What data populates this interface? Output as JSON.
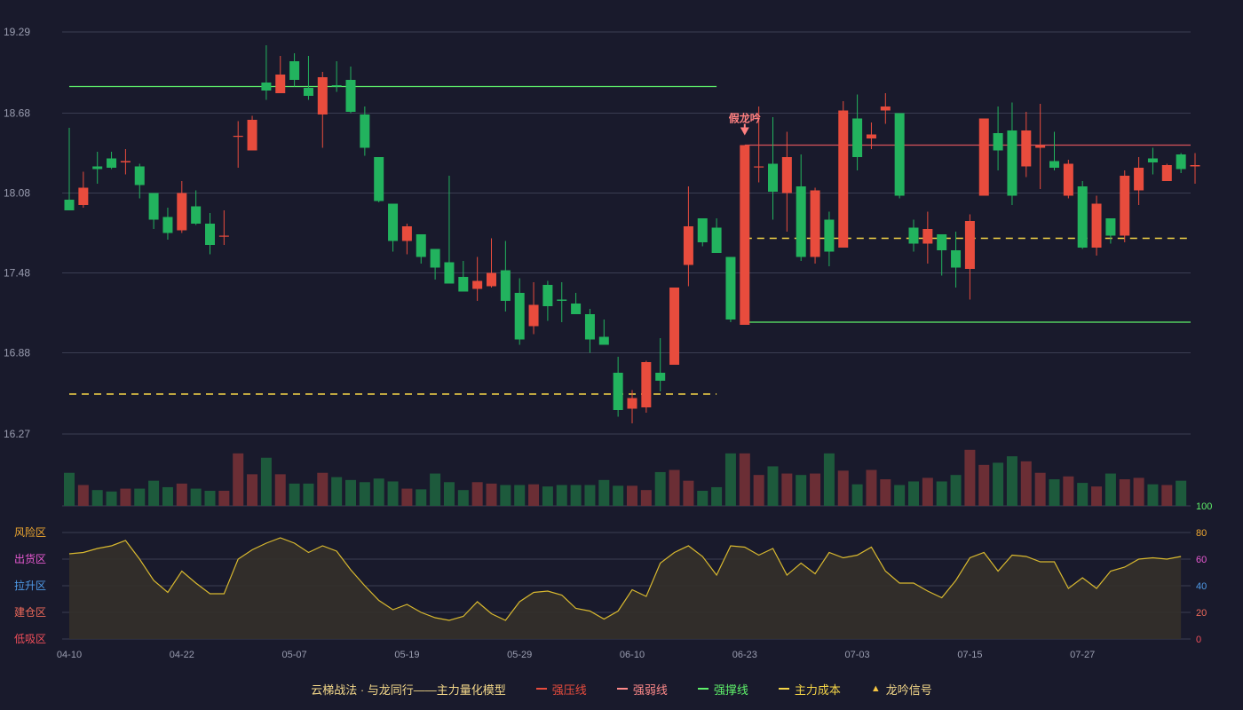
{
  "legend": {
    "title": "云梯战法 · 与龙同行——主力量化模型",
    "items": [
      {
        "label": "强压线",
        "color": "#e84c3d",
        "style": "solid"
      },
      {
        "label": "强弱线",
        "color": "#ff8a8a",
        "style": "dashed"
      },
      {
        "label": "强撑线",
        "color": "#5ef06a",
        "style": "solid"
      },
      {
        "label": "主力成本",
        "color": "#f5d547",
        "style": "dashed"
      },
      {
        "label": "龙吟信号",
        "color": "#f5c542",
        "style": "triangle"
      }
    ]
  },
  "colors": {
    "up": "#e84c3d",
    "down": "#22b35e",
    "vol_up": "#6b2e35",
    "vol_down": "#1d5a3c",
    "grid": "#3a3d52",
    "text": "#9a9db0",
    "osc_line": "#d9b92f",
    "osc_fill": "#34302a"
  },
  "chart_data": {
    "type": "candlestick",
    "price_axis": {
      "ticks": [
        "19.29",
        "18.68",
        "18.08",
        "17.48",
        "16.88",
        "16.27"
      ],
      "ylim": [
        16.27,
        19.29
      ]
    },
    "x_tick_labels": [
      {
        "label": "04-10",
        "index": 0
      },
      {
        "label": "04-22",
        "index": 8
      },
      {
        "label": "05-07",
        "index": 16
      },
      {
        "label": "05-19",
        "index": 24
      },
      {
        "label": "05-29",
        "index": 32
      },
      {
        "label": "06-10",
        "index": 40
      },
      {
        "label": "06-23",
        "index": 48
      },
      {
        "label": "07-03",
        "index": 56
      },
      {
        "label": "07-15",
        "index": 64
      },
      {
        "label": "07-27",
        "index": 72
      }
    ],
    "candles": [
      [
        18.03,
        17.95,
        18.57,
        17.95
      ],
      [
        17.99,
        18.12,
        18.24,
        17.97
      ],
      [
        18.28,
        18.26,
        18.39,
        18.15
      ],
      [
        18.34,
        18.27,
        18.39,
        18.26
      ],
      [
        18.31,
        18.32,
        18.41,
        18.22
      ],
      [
        18.28,
        18.14,
        18.3,
        18.04
      ],
      [
        18.08,
        17.88,
        18.08,
        17.81
      ],
      [
        17.9,
        17.78,
        17.97,
        17.73
      ],
      [
        17.8,
        18.08,
        18.17,
        17.78
      ],
      [
        17.98,
        17.85,
        18.1,
        17.84
      ],
      [
        17.85,
        17.69,
        17.93,
        17.62
      ],
      [
        17.76,
        17.76,
        17.95,
        17.69
      ],
      [
        18.51,
        18.51,
        18.62,
        18.27
      ],
      [
        18.4,
        18.63,
        18.66,
        18.4
      ],
      [
        18.91,
        18.85,
        19.19,
        18.78
      ],
      [
        18.83,
        18.97,
        19.11,
        18.83
      ],
      [
        19.07,
        18.93,
        19.13,
        18.88
      ],
      [
        18.87,
        18.81,
        19.11,
        18.78
      ],
      [
        18.67,
        18.95,
        18.99,
        18.42
      ],
      [
        18.89,
        18.88,
        19.07,
        18.84
      ],
      [
        18.93,
        18.69,
        19.03,
        18.68
      ],
      [
        18.67,
        18.42,
        18.73,
        18.36
      ],
      [
        18.35,
        18.02,
        18.35,
        18.01
      ],
      [
        18.0,
        17.72,
        18.0,
        17.64
      ],
      [
        17.72,
        17.83,
        17.85,
        17.62
      ],
      [
        17.77,
        17.6,
        17.77,
        17.55
      ],
      [
        17.66,
        17.52,
        17.66,
        17.43
      ],
      [
        17.56,
        17.4,
        18.21,
        17.4
      ],
      [
        17.45,
        17.34,
        17.57,
        17.34
      ],
      [
        17.36,
        17.42,
        17.6,
        17.27
      ],
      [
        17.38,
        17.48,
        17.74,
        17.37
      ],
      [
        17.5,
        17.27,
        17.72,
        17.19
      ],
      [
        17.33,
        16.98,
        17.44,
        16.94
      ],
      [
        17.08,
        17.24,
        17.41,
        17.02
      ],
      [
        17.39,
        17.23,
        17.42,
        17.12
      ],
      [
        17.28,
        17.27,
        17.41,
        17.11
      ],
      [
        17.25,
        17.17,
        17.33,
        17.17
      ],
      [
        17.17,
        16.98,
        17.21,
        16.88
      ],
      [
        17.0,
        16.94,
        17.13,
        16.94
      ],
      [
        16.73,
        16.45,
        16.85,
        16.4
      ],
      [
        16.46,
        16.54,
        16.6,
        16.35
      ],
      [
        16.47,
        16.81,
        16.82,
        16.43
      ],
      [
        16.73,
        16.67,
        16.99,
        16.59
      ],
      [
        16.79,
        17.37,
        17.37,
        16.79
      ],
      [
        17.54,
        17.83,
        18.13,
        17.38
      ],
      [
        17.89,
        17.71,
        17.89,
        17.68
      ],
      [
        17.82,
        17.63,
        17.89,
        17.63
      ],
      [
        17.6,
        17.13,
        17.6,
        17.11
      ],
      [
        17.09,
        18.44,
        18.44,
        17.09
      ],
      [
        18.28,
        18.28,
        18.73,
        18.16
      ],
      [
        18.3,
        18.09,
        18.65,
        17.88
      ],
      [
        18.08,
        18.35,
        18.54,
        17.79
      ],
      [
        18.13,
        17.6,
        18.37,
        17.57
      ],
      [
        17.6,
        18.1,
        18.12,
        17.55
      ],
      [
        17.88,
        17.64,
        17.94,
        17.53
      ],
      [
        17.67,
        18.7,
        18.77,
        17.73
      ],
      [
        18.64,
        18.35,
        18.82,
        18.25
      ],
      [
        18.49,
        18.52,
        18.61,
        18.41
      ],
      [
        18.7,
        18.73,
        18.83,
        18.6
      ],
      [
        18.68,
        18.06,
        18.68,
        18.04
      ],
      [
        17.82,
        17.7,
        17.88,
        17.64
      ],
      [
        17.7,
        17.81,
        17.94,
        17.55
      ],
      [
        17.77,
        17.65,
        17.77,
        17.46
      ],
      [
        17.65,
        17.52,
        17.79,
        17.37
      ],
      [
        17.51,
        17.87,
        17.92,
        17.28
      ],
      [
        18.06,
        18.64,
        18.64,
        18.06
      ],
      [
        18.53,
        18.4,
        18.73,
        18.25
      ],
      [
        18.55,
        18.06,
        18.76,
        17.99
      ],
      [
        18.28,
        18.55,
        18.69,
        18.2
      ],
      [
        18.42,
        18.44,
        18.75,
        18.11
      ],
      [
        18.32,
        18.27,
        18.54,
        18.25
      ],
      [
        18.06,
        18.3,
        18.33,
        18.04
      ],
      [
        18.13,
        17.67,
        18.17,
        17.66
      ],
      [
        17.67,
        18.0,
        18.06,
        17.61
      ],
      [
        17.89,
        17.76,
        17.89,
        17.7
      ],
      [
        17.76,
        18.21,
        18.25,
        17.71
      ],
      [
        18.1,
        18.27,
        18.35,
        17.99
      ],
      [
        18.34,
        18.31,
        18.42,
        18.22
      ],
      [
        18.17,
        18.29,
        18.3,
        18.17
      ],
      [
        18.37,
        18.26,
        18.38,
        18.23
      ],
      [
        18.28,
        18.29,
        18.38,
        18.15
      ]
    ],
    "volume": [
      46,
      29,
      22,
      20,
      24,
      24,
      35,
      26,
      31,
      24,
      21,
      21,
      73,
      44,
      67,
      44,
      31,
      31,
      46,
      40,
      36,
      33,
      38,
      34,
      24,
      23,
      45,
      33,
      22,
      33,
      31,
      29,
      29,
      30,
      27,
      29,
      29,
      29,
      36,
      28,
      28,
      22,
      47,
      50,
      35,
      21,
      26,
      73,
      73,
      43,
      55,
      45,
      43,
      45,
      73,
      49,
      30,
      50,
      37,
      29,
      34,
      39,
      34,
      43,
      78,
      57,
      60,
      69,
      62,
      46,
      37,
      41,
      32,
      27,
      45,
      37,
      39,
      30,
      29,
      35
    ],
    "volume_axis": {
      "ticks": [
        "100",
        "80",
        "60",
        "40",
        "20",
        "0"
      ],
      "ylim": [
        0,
        100
      ]
    },
    "oscillator": [
      64,
      65,
      68,
      70,
      74,
      60,
      44,
      35,
      51,
      42,
      34,
      34,
      60,
      67,
      72,
      76,
      72,
      65,
      70,
      66,
      52,
      40,
      29,
      22,
      26,
      20,
      16,
      14,
      17,
      28,
      19,
      14,
      28,
      35,
      36,
      33,
      23,
      21,
      15,
      21,
      37,
      32,
      57,
      65,
      70,
      62,
      48,
      70,
      69,
      63,
      68,
      48,
      57,
      49,
      65,
      61,
      63,
      69,
      51,
      42,
      42,
      36,
      31,
      44,
      61,
      65,
      51,
      63,
      62,
      58,
      58,
      38,
      46,
      38,
      51,
      54,
      60,
      61,
      60,
      62
    ],
    "oscillator_zones": [
      {
        "label": "风险区",
        "color": "#f0a830"
      },
      {
        "label": "出货区",
        "color": "#e85ad2"
      },
      {
        "label": "拉升区",
        "color": "#4f9be8"
      },
      {
        "label": "建仓区",
        "color": "#ef6a5a"
      },
      {
        "label": "低吸区",
        "color": "#f04e5a"
      }
    ],
    "lines": [
      {
        "name": "强撑线",
        "kind": "support",
        "y": 18.88,
        "from_index": 0,
        "to_index": 46
      },
      {
        "name": "主力成本",
        "kind": "cost",
        "y": 16.57,
        "from_index": 0,
        "to_index": 46
      },
      {
        "name": "强压线",
        "kind": "pressure",
        "y": 18.44,
        "from_index": 48,
        "to_index": 80
      },
      {
        "name": "主力成本",
        "kind": "cost",
        "y": 17.74,
        "from_index": 48,
        "to_index": 80
      },
      {
        "name": "强撑线",
        "kind": "support",
        "y": 17.11,
        "from_index": 48,
        "to_index": 80
      }
    ],
    "signals": [
      {
        "label": "假龙吟",
        "index": 48,
        "price": 18.44
      }
    ]
  }
}
